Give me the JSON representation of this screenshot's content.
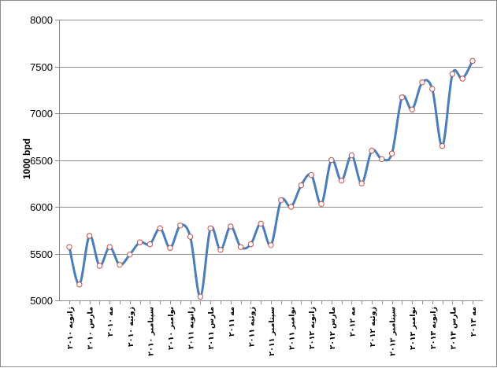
{
  "chart_data": {
    "type": "line",
    "ylabel": "1000 bpd",
    "ylim": [
      5000,
      8000
    ],
    "yticks": [
      5000,
      5500,
      6000,
      6500,
      7000,
      7500,
      8000
    ],
    "grid": true,
    "smooth": true,
    "x_labels": [
      "ژانویه ۲۰۱۰",
      "مارس ۲۰۱۰",
      "مه ۲۰۱۰",
      "ژوئیه ۲۰۱۰",
      "سپتامبر ۲۰۱۰",
      "نوامبر ۲۰۱۰",
      "ژانویه ۲۰۱۱",
      "مارس ۲۰۱۱",
      "مه ۲۰۱۱",
      "ژوئیه ۲۰۱۱",
      "سپتامبر ۲۰۱۱",
      "نوامبر ۲۰۱۱",
      "ژانویه ۲۰۱۲",
      "مارس ۲۰۱۲",
      "مه ۲۰۱۲",
      "ژوئیه ۲۰۱۲",
      "سپتامبر ۲۰۱۲",
      "نوامبر ۲۰۱۲",
      "ژانویه ۲۰۱۳",
      "مارس ۲۰۱۳",
      "مه ۲۰۱۳"
    ],
    "series": [
      {
        "color": "#4a7ebb",
        "marker_fill": "#ffffff",
        "marker_edge": "#c0504d",
        "values": [
          5570,
          5170,
          5690,
          5370,
          5570,
          5380,
          5490,
          5620,
          5600,
          5770,
          5560,
          5800,
          5680,
          5040,
          5770,
          5540,
          5790,
          5570,
          5600,
          5820,
          5590,
          6070,
          6000,
          6230,
          6340,
          6030,
          6500,
          6280,
          6550,
          6250,
          6600,
          6510,
          6570,
          7170,
          7040,
          7330,
          7260,
          6650,
          7420,
          7370,
          7560
        ]
      }
    ]
  }
}
